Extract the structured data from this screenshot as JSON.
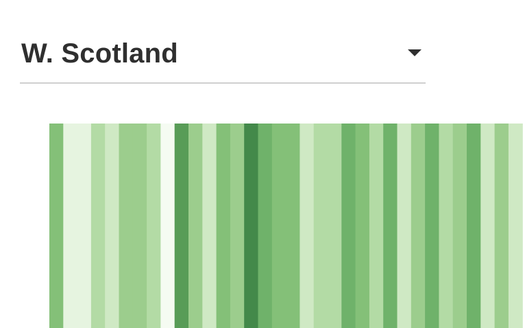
{
  "region_selector": {
    "selected": "W. Scotland",
    "caret_icon": "caret-down-icon"
  },
  "chart_data": {
    "type": "heatmap",
    "palette": [
      "#f5fbf2",
      "#e6f4e0",
      "#cfe9c4",
      "#b3dba5",
      "#9ccd8d",
      "#84c078",
      "#6fb26a",
      "#589c57",
      "#43894a"
    ],
    "levels": [
      5,
      1,
      1,
      3,
      2,
      4,
      4,
      3,
      0,
      7,
      4,
      2,
      5,
      4,
      8,
      6,
      5,
      5,
      2,
      3,
      3,
      6,
      5,
      3,
      6,
      2,
      4,
      6,
      3,
      4,
      6,
      2,
      4,
      2
    ]
  }
}
